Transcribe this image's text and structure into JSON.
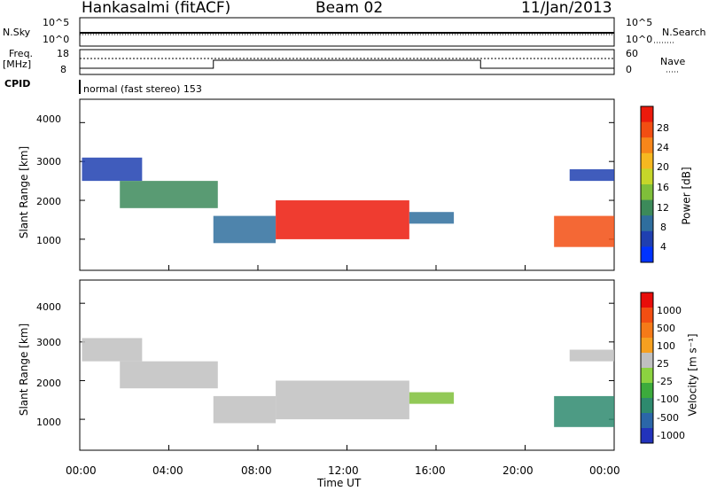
{
  "header": {
    "station": "Hankasalmi (fitACF)",
    "beam": "Beam 02",
    "date": "11/Jan/2013"
  },
  "top_panels": {
    "nsky_label": "N.Sky",
    "nsearch_label": "N.Search",
    "nsky_ticks": [
      "10^5",
      "10^0"
    ],
    "nsearch_ticks": [
      "10^5",
      "10^0"
    ],
    "freq_label_1": "Freq.",
    "freq_label_2": "[MHz]",
    "freq_ticks": [
      "18",
      "8"
    ],
    "nave_label": "Nave",
    "nave_ticks": [
      "60",
      "0"
    ],
    "cpid_label": "CPID",
    "cpid_text": "normal (fast stereo) 153"
  },
  "chart_data": [
    {
      "type": "heatmap",
      "name": "power",
      "ylabel": "Slant Range [km]",
      "yticks": [
        "4000",
        "3000",
        "2000",
        "1000"
      ],
      "yticks_values": [
        4000,
        3000,
        2000,
        1000
      ],
      "ylim": [
        200,
        4600
      ],
      "xlim": [
        0,
        24
      ],
      "colorbar_label": "Power [dB]",
      "colorbar_ticks": [
        "28",
        "24",
        "20",
        "16",
        "12",
        "8",
        "4"
      ],
      "colorbar_colors": [
        "#0033ff",
        "#1f3fb0",
        "#2f6e9e",
        "#3c8a5a",
        "#7fbf3a",
        "#c6d62a",
        "#f6b820",
        "#f7861a",
        "#f24e12",
        "#ec1a0c"
      ]
    },
    {
      "type": "heatmap",
      "name": "velocity",
      "ylabel": "Slant Range [km]",
      "yticks": [
        "4000",
        "3000",
        "2000",
        "1000"
      ],
      "yticks_values": [
        4000,
        3000,
        2000,
        1000
      ],
      "ylim": [
        200,
        4600
      ],
      "xlim": [
        0,
        24
      ],
      "colorbar_label": "Velocity [m s⁻¹]",
      "colorbar_ticks": [
        "1000",
        "500",
        "100",
        "25",
        "-25",
        "-100",
        "-500",
        "-1000"
      ],
      "colorbar_colors": [
        "#2233bb",
        "#2b66a8",
        "#2e8a6e",
        "#3cab3c",
        "#8cd340",
        "#c0c0c0",
        "#f6a020",
        "#f57a18",
        "#f24e12",
        "#e80d0a"
      ]
    }
  ],
  "xaxis": {
    "ticks": [
      "00:00",
      "04:00",
      "08:00",
      "12:00",
      "16:00",
      "20:00",
      "00:00"
    ],
    "label": "Time UT"
  }
}
